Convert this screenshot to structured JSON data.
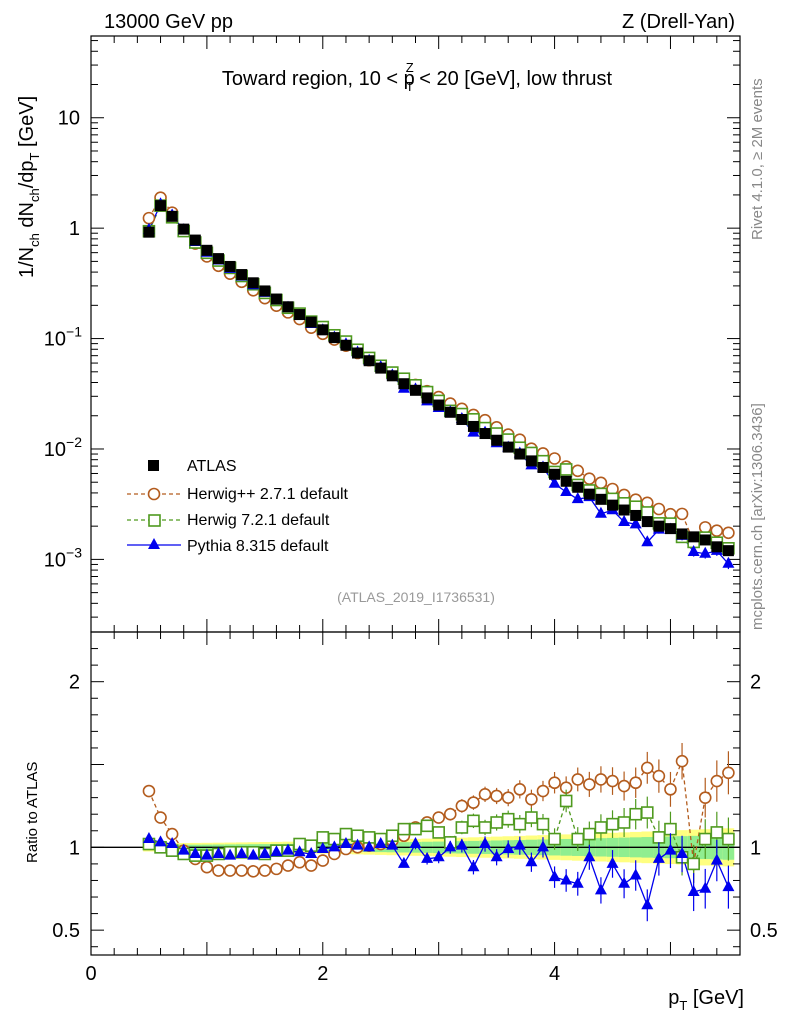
{
  "header": {
    "beam": "13000 GeV pp",
    "process": "Z (Drell-Yan)"
  },
  "side_labels": {
    "rivet": "Rivet 4.1.0, ≥ 2M events",
    "mcplots": "mcplots.cern.ch [arXiv:1306.3436]"
  },
  "colors": {
    "atlas": "#000000",
    "herwigpp": "#b35c1e",
    "herwig7": "#4f9a1f",
    "pythia": "#0000ee",
    "band_stat": "#90ee90",
    "band_tot": "#ffff80"
  },
  "chart_data": [
    {
      "type": "scatter",
      "title": "Toward region, 10 < p_T^Z < 20 [GeV], low thrust",
      "title_parts": {
        "pre": "Toward region, 10 < p",
        "sub": "T",
        "sup": "Z",
        "post": " < 20 [GeV], low thrust"
      },
      "ylabel": "1/N_ch dN_ch/dp_T [GeV]",
      "ylabel_parts": {
        "a": "1/N",
        "a_sub": "ch",
        "b": " dN",
        "b_sub": "ch",
        "c": "/dp",
        "c_sub": "T",
        "d": " [GeV]"
      },
      "yscale": "log",
      "ylim": [
        0.00022,
        55
      ],
      "xlim": [
        0,
        5.6
      ],
      "ytick_labels": [
        {
          "v": 10,
          "text": "10"
        },
        {
          "v": 1,
          "text": "1"
        },
        {
          "v": 0.1,
          "text": "10",
          "exp": "−1"
        },
        {
          "v": 0.01,
          "text": "10",
          "exp": "−2"
        },
        {
          "v": 0.001,
          "text": "10",
          "exp": "−3"
        }
      ],
      "reference": "(ATLAS_2019_I1736531)",
      "legend_position": "lower-left",
      "legend": [
        {
          "key": "atlas",
          "label": "ATLAS"
        },
        {
          "key": "herwigpp",
          "label": "Herwig++ 2.7.1 default"
        },
        {
          "key": "herwig7",
          "label": "Herwig 7.2.1 default"
        },
        {
          "key": "pythia",
          "label": "Pythia 8.315 default"
        }
      ],
      "x": [
        0.5,
        0.6,
        0.7,
        0.8,
        0.9,
        1.0,
        1.1,
        1.2,
        1.3,
        1.4,
        1.5,
        1.6,
        1.7,
        1.8,
        1.9,
        2.0,
        2.1,
        2.2,
        2.3,
        2.4,
        2.5,
        2.6,
        2.7,
        2.8,
        2.9,
        3.0,
        3.1,
        3.2,
        3.3,
        3.4,
        3.5,
        3.6,
        3.7,
        3.8,
        3.9,
        4.0,
        4.1,
        4.2,
        4.3,
        4.4,
        4.5,
        4.6,
        4.7,
        4.8,
        4.9,
        5.0,
        5.1,
        5.2,
        5.3,
        5.4,
        5.5
      ],
      "series": [
        {
          "key": "atlas",
          "name": "ATLAS",
          "values": [
            0.92,
            1.6,
            1.28,
            0.98,
            0.78,
            0.63,
            0.53,
            0.45,
            0.38,
            0.32,
            0.27,
            0.228,
            0.194,
            0.165,
            0.141,
            0.12,
            0.102,
            0.087,
            0.074,
            0.063,
            0.054,
            0.046,
            0.039,
            0.034,
            0.029,
            0.025,
            0.0215,
            0.0185,
            0.016,
            0.0138,
            0.012,
            0.0104,
            0.009,
            0.0078,
            0.0068,
            0.0059,
            0.0051,
            0.0045,
            0.0039,
            0.0035,
            0.0031,
            0.0028,
            0.0025,
            0.0022,
            0.002,
            0.0019,
            0.0017,
            0.0016,
            0.0015,
            0.0013,
            0.0012
          ]
        }
      ],
      "series_mc": [
        {
          "key": "herwigpp",
          "ratio": [
            1.34,
            1.18,
            1.08,
            0.98,
            0.93,
            0.88,
            0.86,
            0.86,
            0.86,
            0.855,
            0.86,
            0.87,
            0.89,
            0.91,
            0.89,
            0.92,
            0.96,
            0.99,
            1.0,
            1.01,
            1.02,
            1.04,
            1.07,
            1.12,
            1.15,
            1.18,
            1.2,
            1.25,
            1.27,
            1.32,
            1.31,
            1.3,
            1.35,
            1.29,
            1.34,
            1.39,
            1.36,
            1.41,
            1.38,
            1.41,
            1.4,
            1.37,
            1.39,
            1.48,
            1.43,
            1.35,
            1.52,
            0.9,
            1.3,
            1.4,
            1.45
          ]
        },
        {
          "key": "herwig7",
          "ratio": [
            1.02,
            1.0,
            0.98,
            0.96,
            0.95,
            0.95,
            0.96,
            0.97,
            0.97,
            0.97,
            0.96,
            0.98,
            0.98,
            1.02,
            1.01,
            1.06,
            1.05,
            1.08,
            1.07,
            1.06,
            1.05,
            1.07,
            1.11,
            1.11,
            1.13,
            1.09,
            1.03,
            1.12,
            1.16,
            1.12,
            1.15,
            1.17,
            1.14,
            1.18,
            1.14,
            1.05,
            1.28,
            1.05,
            1.08,
            1.12,
            1.14,
            1.15,
            1.2,
            1.21,
            1.06,
            1.11,
            0.94,
            0.9,
            1.05,
            1.09,
            1.05
          ]
        },
        {
          "key": "pythia",
          "ratio": [
            1.05,
            1.03,
            1.02,
            0.98,
            0.96,
            0.95,
            0.96,
            0.95,
            0.96,
            0.95,
            0.96,
            0.97,
            0.98,
            0.97,
            0.96,
            0.99,
            1.0,
            1.02,
            1.01,
            1.0,
            1.02,
            1.01,
            0.9,
            1.02,
            0.93,
            0.94,
            1.0,
            1.01,
            0.88,
            1.02,
            0.94,
            0.99,
            1.01,
            0.91,
            1.0,
            0.82,
            0.8,
            0.78,
            0.94,
            0.74,
            0.9,
            0.78,
            0.83,
            0.65,
            0.93,
            0.98,
            0.96,
            0.73,
            0.75,
            0.92,
            0.76
          ]
        }
      ]
    },
    {
      "type": "scatter",
      "ylabel": "Ratio to ATLAS",
      "xlabel": "p_T [GeV]",
      "xlabel_parts": {
        "a": "p",
        "sub": "T",
        "b": " [GeV]"
      },
      "xlim": [
        0,
        5.6
      ],
      "ylim": [
        0.35,
        2.3
      ],
      "ytick_labels": [
        {
          "v": 2,
          "text": "2"
        },
        {
          "v": 1,
          "text": "1"
        },
        {
          "v": 0.5,
          "text": "0.5"
        }
      ],
      "xtick_labels": [
        {
          "v": 0,
          "text": "0"
        },
        {
          "v": 2,
          "text": "2"
        },
        {
          "v": 4,
          "text": "4"
        }
      ],
      "reference_line": 1
    }
  ]
}
